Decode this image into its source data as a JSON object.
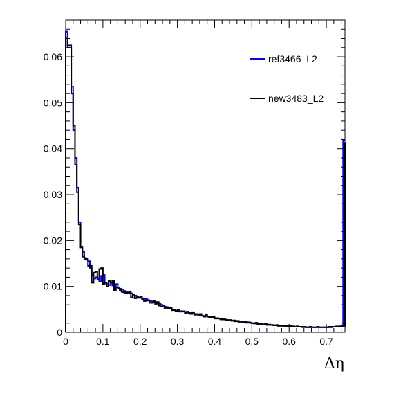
{
  "chart_data": {
    "type": "line",
    "style": "step-histogram",
    "xlabel": "Δη",
    "ylabel": "",
    "xlim": [
      0,
      0.75
    ],
    "ylim": [
      0,
      0.068
    ],
    "grid": false,
    "legend_position": "top-right",
    "x_ticks": [
      0,
      0.1,
      0.2,
      0.3,
      0.4,
      0.5,
      0.6,
      0.7
    ],
    "x_tick_labels": [
      "0",
      "0.1",
      "0.2",
      "0.3",
      "0.4",
      "0.5",
      "0.6",
      "0.7"
    ],
    "y_ticks": [
      0,
      0.01,
      0.02,
      0.03,
      0.04,
      0.05,
      0.06
    ],
    "y_tick_labels": [
      "0",
      "0.01",
      "0.02",
      "0.03",
      "0.04",
      "0.05",
      "0.06"
    ],
    "bin_width": 0.005,
    "series": [
      {
        "name": "ref3466_L2",
        "color": "#0000ff",
        "values": [
          0.0655,
          0.062,
          0.062,
          0.0535,
          0.044,
          0.038,
          0.0305,
          0.024,
          0.0185,
          0.0175,
          0.0162,
          0.016,
          0.0155,
          0.014,
          0.0125,
          0.0117,
          0.012,
          0.0115,
          0.011,
          0.0123,
          0.0125,
          0.0108,
          0.0105,
          0.0103,
          0.0108,
          0.0102,
          0.01,
          0.0105,
          0.0098,
          0.0095,
          0.0093,
          0.009,
          0.0088,
          0.0087,
          0.0085,
          0.0085,
          0.0082,
          0.008,
          0.0078,
          0.0076,
          0.0075,
          0.0074,
          0.0073,
          0.0072,
          0.007,
          0.0068,
          0.0067,
          0.0066,
          0.0065,
          0.0063,
          0.0062,
          0.006,
          0.0058,
          0.0056,
          0.0055,
          0.0053,
          0.0052,
          0.005,
          0.0049,
          0.0047,
          0.0047,
          0.0046,
          0.0045,
          0.0045,
          0.0044,
          0.0043,
          0.0042,
          0.0042,
          0.0041,
          0.004,
          0.0039,
          0.0038,
          0.0037,
          0.0036,
          0.0035,
          0.0035,
          0.0034,
          0.0033,
          0.0032,
          0.0032,
          0.0031,
          0.003,
          0.003,
          0.0029,
          0.0028,
          0.0028,
          0.0027,
          0.0026,
          0.0026,
          0.0025,
          0.0025,
          0.0024,
          0.0024,
          0.0023,
          0.0023,
          0.0022,
          0.0022,
          0.0021,
          0.0021,
          0.002,
          0.002,
          0.0019,
          0.0019,
          0.0018,
          0.0018,
          0.0018,
          0.0017,
          0.0017,
          0.0016,
          0.0016,
          0.0016,
          0.0015,
          0.0015,
          0.0015,
          0.0014,
          0.0014,
          0.0014,
          0.0014,
          0.0013,
          0.0013,
          0.0013,
          0.0013,
          0.0012,
          0.0012,
          0.0012,
          0.0012,
          0.0012,
          0.0011,
          0.0011,
          0.0011,
          0.0011,
          0.0011,
          0.0011,
          0.0011,
          0.0011,
          0.0011,
          0.0011,
          0.0011,
          0.0011,
          0.0011,
          0.0011,
          0.0011,
          0.0012,
          0.0012,
          0.0012,
          0.0013,
          0.0013,
          0.0013,
          0.0014,
          0.0419
        ]
      },
      {
        "name": "new3483_L2",
        "color": "#000000",
        "values": [
          0.064,
          0.0625,
          0.0625,
          0.052,
          0.045,
          0.0365,
          0.0315,
          0.0235,
          0.0185,
          0.0165,
          0.016,
          0.0158,
          0.0145,
          0.0145,
          0.0108,
          0.013,
          0.0132,
          0.0118,
          0.0138,
          0.014,
          0.0105,
          0.0108,
          0.01,
          0.0112,
          0.0108,
          0.0112,
          0.0092,
          0.0098,
          0.0095,
          0.0092,
          0.0088,
          0.0087,
          0.0086,
          0.0086,
          0.0088,
          0.0076,
          0.0082,
          0.0074,
          0.0076,
          0.0075,
          0.0078,
          0.0072,
          0.0068,
          0.007,
          0.0069,
          0.0064,
          0.0064,
          0.0068,
          0.0062,
          0.0066,
          0.0058,
          0.0056,
          0.0058,
          0.0053,
          0.0053,
          0.0052,
          0.0054,
          0.0048,
          0.0048,
          0.0046,
          0.0049,
          0.0045,
          0.0046,
          0.0046,
          0.0042,
          0.0045,
          0.0042,
          0.004,
          0.0044,
          0.0038,
          0.004,
          0.0038,
          0.004,
          0.0036,
          0.0034,
          0.0038,
          0.0034,
          0.0033,
          0.0032,
          0.0034,
          0.003,
          0.0031,
          0.003,
          0.0028,
          0.003,
          0.0028,
          0.0026,
          0.0027,
          0.0027,
          0.0025,
          0.0026,
          0.0024,
          0.0025,
          0.0023,
          0.0024,
          0.0022,
          0.0023,
          0.0021,
          0.0022,
          0.0021,
          0.002,
          0.002,
          0.0021,
          0.0018,
          0.0019,
          0.0019,
          0.0017,
          0.0018,
          0.0016,
          0.0017,
          0.0016,
          0.0016,
          0.0015,
          0.0016,
          0.0014,
          0.0015,
          0.0014,
          0.0014,
          0.0014,
          0.0013,
          0.0014,
          0.0013,
          0.0013,
          0.0012,
          0.0013,
          0.0012,
          0.0012,
          0.0012,
          0.0012,
          0.0011,
          0.0011,
          0.0012,
          0.0011,
          0.0011,
          0.0011,
          0.0012,
          0.0011,
          0.0011,
          0.0011,
          0.0011,
          0.0011,
          0.0012,
          0.0011,
          0.0012,
          0.0012,
          0.0012,
          0.0012,
          0.0013,
          0.0013,
          0.0014,
          0.0414
        ]
      }
    ]
  }
}
